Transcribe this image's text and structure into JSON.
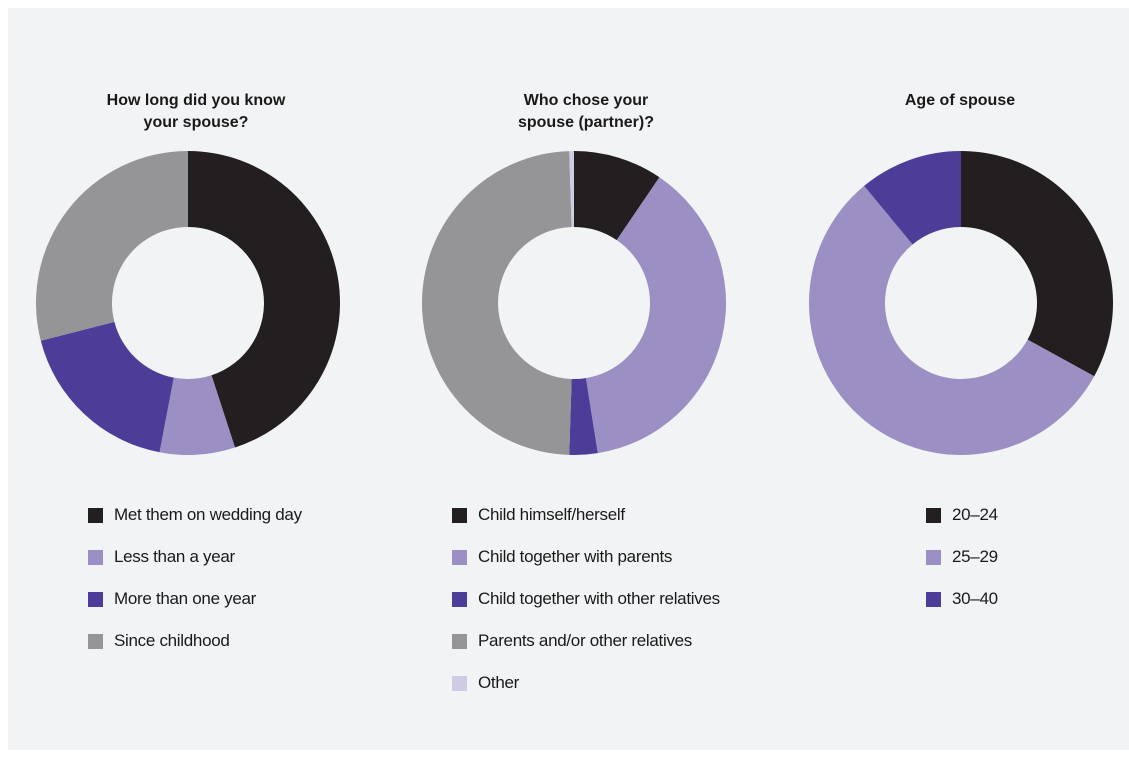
{
  "chart_data": [
    {
      "type": "pie",
      "title": "How long did you know your spouse?",
      "donut": true,
      "categories": [
        "Met them on wedding day",
        "Less than a year",
        "More than one year",
        "Since childhood"
      ],
      "values": [
        45,
        8,
        18,
        29
      ],
      "colors": [
        "#231f20",
        "#9b8fc4",
        "#4d3d99",
        "#959597"
      ]
    },
    {
      "type": "pie",
      "title": "Who chose your spouse (partner)?",
      "donut": true,
      "categories": [
        "Child himself/herself",
        "Child together with parents",
        "Child together with other relatives",
        "Parents and/or other relatives",
        "Other"
      ],
      "values": [
        9.5,
        38,
        3,
        49,
        0.5
      ],
      "colors": [
        "#231f20",
        "#9b8fc4",
        "#4d3d99",
        "#959597",
        "#cfcbe4"
      ]
    },
    {
      "type": "pie",
      "title": "Age of spouse",
      "donut": true,
      "categories": [
        "20–24",
        "25–29",
        "30–40"
      ],
      "values": [
        33,
        56,
        11
      ],
      "colors": [
        "#231f20",
        "#9b8fc4",
        "#4d3d99"
      ]
    }
  ]
}
